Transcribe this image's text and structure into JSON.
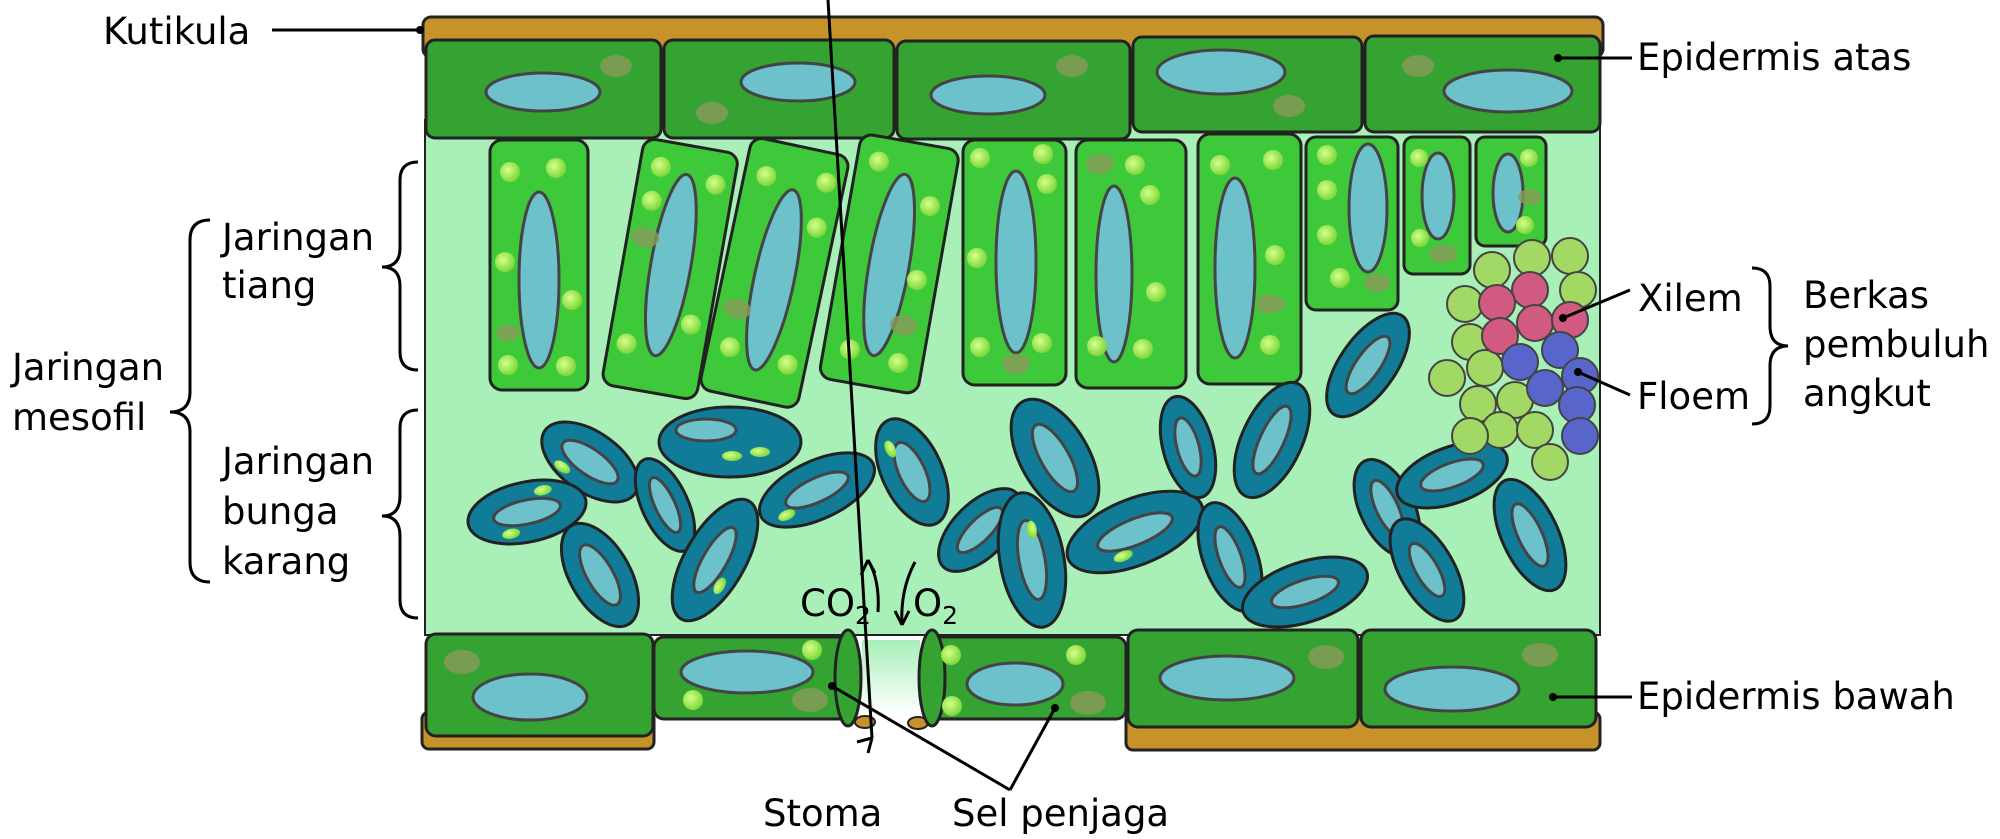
{
  "title": "",
  "labels": {
    "kutikula": "Kutikula",
    "epidermis_atas": "Epidermis atas",
    "jaringan_tiang_1": "Jaringan",
    "jaringan_tiang_2": "tiang",
    "jaringan_mesofil_1": "Jaringan",
    "jaringan_mesofil_2": "mesofil",
    "jaringan_bunga_1": "Jaringan",
    "jaringan_bunga_2": "bunga",
    "jaringan_bunga_3": "karang",
    "xilem": "Xilem",
    "floem": "Floem",
    "berkas_1": "Berkas",
    "berkas_2": "pembuluh",
    "berkas_3": "angkut",
    "epidermis_bawah": "Epidermis bawah",
    "stoma": "Stoma",
    "sel_penjaga": "Sel penjaga",
    "co2_main": "CO",
    "co2_sub": "2",
    "o2_main": "O",
    "o2_sub": "2"
  },
  "colors": {
    "cuticle": "#c8922a",
    "epidermis": "#34a332",
    "palisade": "#3ec93a",
    "mesophyll_background": "#a8efb8",
    "spongy_cell": "#107c98",
    "vacuole": "#6cc1cb",
    "chloroplast": "#8ee64a",
    "xylem": "#d05a80",
    "phloem": "#5866cc",
    "bundle_parenchyma": "#a2d864"
  }
}
